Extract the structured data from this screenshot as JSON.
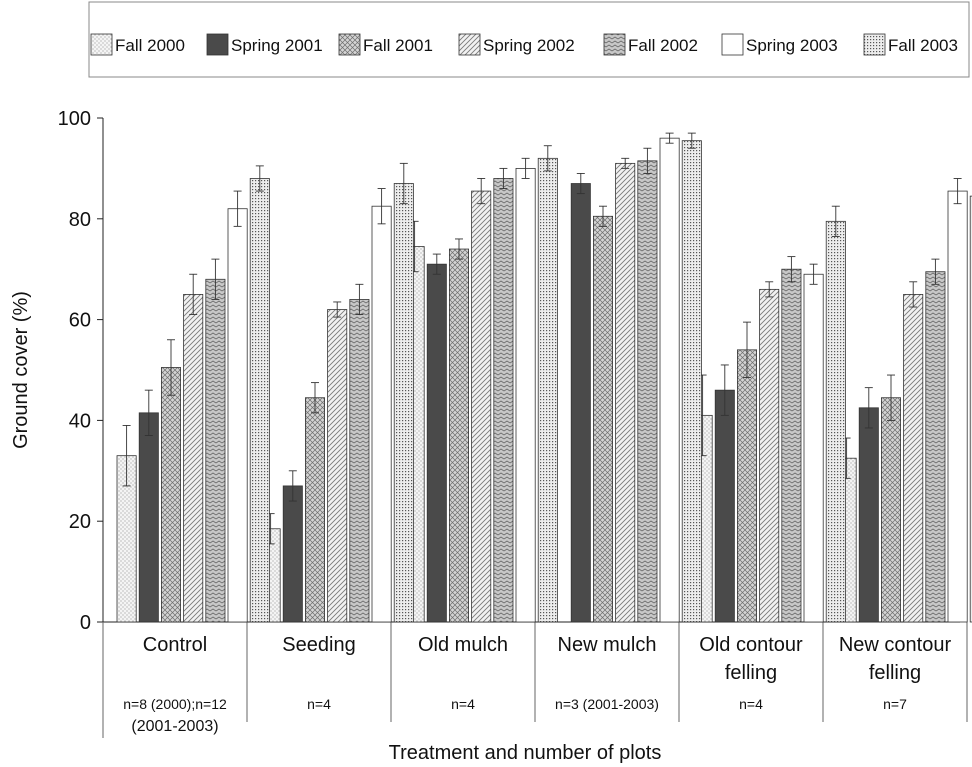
{
  "chart_data": {
    "type": "bar",
    "xlabel": "Treatment and number of plots",
    "ylabel": "Ground cover (%)",
    "ylim": [
      0,
      100
    ],
    "yticks": [
      0,
      20,
      40,
      60,
      80,
      100
    ],
    "grid": false,
    "legend_position": "top",
    "error_bars": true,
    "categories": [
      {
        "name_lines": [
          "Control"
        ],
        "n_lines": [
          "n=8 (2000);n=12",
          "(2001-2003)"
        ]
      },
      {
        "name_lines": [
          "Seeding"
        ],
        "n_lines": [
          "n=4"
        ]
      },
      {
        "name_lines": [
          "Old mulch"
        ],
        "n_lines": [
          "n=4"
        ]
      },
      {
        "name_lines": [
          "New mulch"
        ],
        "n_lines": [
          "n=3 (2001-2003)"
        ]
      },
      {
        "name_lines": [
          "Old contour",
          "felling"
        ],
        "n_lines": [
          "n=4"
        ]
      },
      {
        "name_lines": [
          "New contour",
          "felling"
        ],
        "n_lines": [
          "n=7"
        ]
      }
    ],
    "series": [
      {
        "name": "Fall 2000",
        "pattern": "dots-light",
        "values": [
          33,
          18.5,
          74.5,
          null,
          41,
          32.5
        ],
        "errors": [
          6,
          3,
          5,
          null,
          8,
          4
        ]
      },
      {
        "name": "Spring 2001",
        "pattern": "solid-dark",
        "values": [
          41.5,
          27,
          71,
          87,
          46,
          42.5
        ],
        "errors": [
          4.5,
          3,
          2,
          2,
          5,
          4
        ]
      },
      {
        "name": "Fall 2001",
        "pattern": "cross-hatch",
        "values": [
          50.5,
          44.5,
          74,
          80.5,
          54,
          44.5
        ],
        "errors": [
          5.5,
          3,
          2,
          2,
          5.5,
          4.5
        ]
      },
      {
        "name": "Spring 2002",
        "pattern": "diagonal",
        "values": [
          65,
          62,
          85.5,
          91,
          66,
          65
        ],
        "errors": [
          4,
          1.5,
          2.5,
          1,
          1.5,
          2.5
        ]
      },
      {
        "name": "Fall 2002",
        "pattern": "zigzag",
        "values": [
          68,
          64,
          88,
          91.5,
          70,
          69.5
        ],
        "errors": [
          4,
          3,
          2,
          2.5,
          2.5,
          2.5
        ]
      },
      {
        "name": "Spring 2003",
        "pattern": "white",
        "values": [
          82,
          82.5,
          90,
          96,
          69,
          85.5
        ],
        "errors": [
          3.5,
          3.5,
          2,
          1,
          2,
          2.5
        ]
      },
      {
        "name": "Fall 2003",
        "pattern": "dense-dots",
        "values": [
          88,
          87,
          92,
          95.5,
          79.5,
          84.5
        ],
        "errors": [
          2.5,
          4,
          2.5,
          1.5,
          3,
          1
        ]
      }
    ]
  }
}
